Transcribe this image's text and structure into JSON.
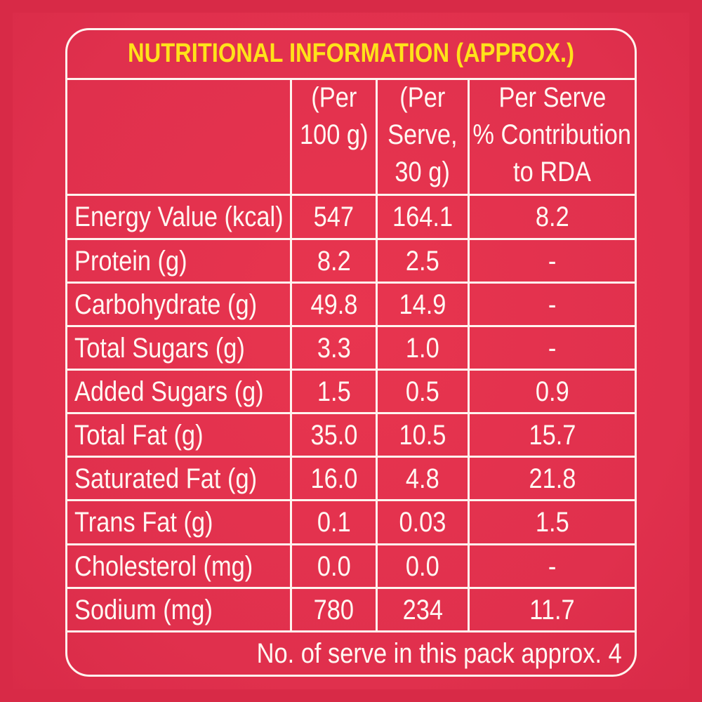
{
  "title": "NUTRITIONAL INFORMATION (APPROX.)",
  "headers": {
    "col1": [
      "(Per",
      "100 g)"
    ],
    "col2": [
      "(Per",
      "Serve,",
      "30 g)"
    ],
    "col3": [
      "Per Serve",
      "% Contribution",
      "to RDA"
    ]
  },
  "rows": [
    {
      "label": "Energy Value (kcal)",
      "per100": "547",
      "perServe": "164.1",
      "rda": "8.2"
    },
    {
      "label": "Protein (g)",
      "per100": "8.2",
      "perServe": "2.5",
      "rda": "-"
    },
    {
      "label": "Carbohydrate (g)",
      "per100": "49.8",
      "perServe": "14.9",
      "rda": "-"
    },
    {
      "label": "Total Sugars (g)",
      "per100": "3.3",
      "perServe": "1.0",
      "rda": "-"
    },
    {
      "label": "Added Sugars (g)",
      "per100": "1.5",
      "perServe": "0.5",
      "rda": "0.9"
    },
    {
      "label": "Total Fat (g)",
      "per100": "35.0",
      "perServe": "10.5",
      "rda": "15.7"
    },
    {
      "label": "Saturated Fat (g)",
      "per100": "16.0",
      "perServe": "4.8",
      "rda": "21.8"
    },
    {
      "label": "Trans Fat (g)",
      "per100": "0.1",
      "perServe": "0.03",
      "rda": "1.5"
    },
    {
      "label": "Cholesterol (mg)",
      "per100": "0.0",
      "perServe": "0.0",
      "rda": "-"
    },
    {
      "label": "Sodium (mg)",
      "per100": "780",
      "perServe": "234",
      "rda": "11.7"
    }
  ],
  "footer": "No. of serve in this pack approx. 4",
  "colors": {
    "background": "#e2304e",
    "title": "#ffe21a",
    "text": "#fff7f2"
  }
}
